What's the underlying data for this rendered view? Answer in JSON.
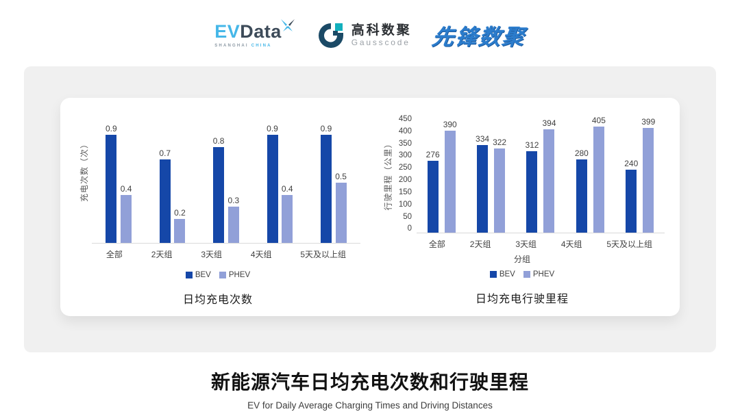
{
  "header": {
    "logos": {
      "evdata": {
        "ev": "EV",
        "data": "Data",
        "sub_left": "SHANGHAI",
        "sub_right": "CHINA"
      },
      "gausscode": {
        "cn": "高科数聚",
        "en": "Gausscode"
      },
      "xianfeng": {
        "text": "先锋数聚"
      }
    }
  },
  "colors": {
    "bev": "#1547a8",
    "phev": "#91a0d8",
    "axis_line": "#d9d9d9",
    "label_text": "#404040",
    "panel_bg": "#f0f0f0",
    "evdata_blue": "#45b7e8",
    "evdata_dark": "#3d4b59",
    "gauss_navy": "#1b4a66",
    "gauss_teal": "#12b0bd",
    "xianfeng_blue": "#2b7ccc"
  },
  "chart_data": [
    {
      "type": "bar",
      "title": "日均充电次数",
      "ylabel": "充电次数（次）",
      "xlabel": "",
      "categories": [
        "全部",
        "2天组",
        "3天组",
        "4天组",
        "5天及以上组"
      ],
      "series": [
        {
          "name": "BEV",
          "color": "#1547a8",
          "values": [
            0.9,
            0.7,
            0.8,
            0.9,
            0.9
          ]
        },
        {
          "name": "PHEV",
          "color": "#91a0d8",
          "values": [
            0.4,
            0.2,
            0.3,
            0.4,
            0.5
          ]
        }
      ],
      "ylim": [
        0,
        1.0
      ],
      "yticks": [],
      "grid": false,
      "legend_position": "bottom",
      "value_labels": true
    },
    {
      "type": "bar",
      "title": "日均充电行驶里程",
      "ylabel": "行驶里程（公里）",
      "xlabel": "分组",
      "categories": [
        "全部",
        "2天组",
        "3天组",
        "4天组",
        "5天及以上组"
      ],
      "series": [
        {
          "name": "BEV",
          "color": "#1547a8",
          "values": [
            276,
            334,
            312,
            280,
            240
          ]
        },
        {
          "name": "PHEV",
          "color": "#91a0d8",
          "values": [
            390,
            322,
            394,
            405,
            399
          ]
        }
      ],
      "ylim": [
        0,
        450
      ],
      "yticks": [
        450,
        400,
        350,
        300,
        250,
        200,
        150,
        100,
        50,
        0
      ],
      "grid": false,
      "legend_position": "bottom",
      "value_labels": true
    }
  ],
  "footer": {
    "title": "新能源汽车日均充电次数和行驶里程",
    "subtitle": "EV for Daily Average Charging Times and Driving Distances"
  }
}
